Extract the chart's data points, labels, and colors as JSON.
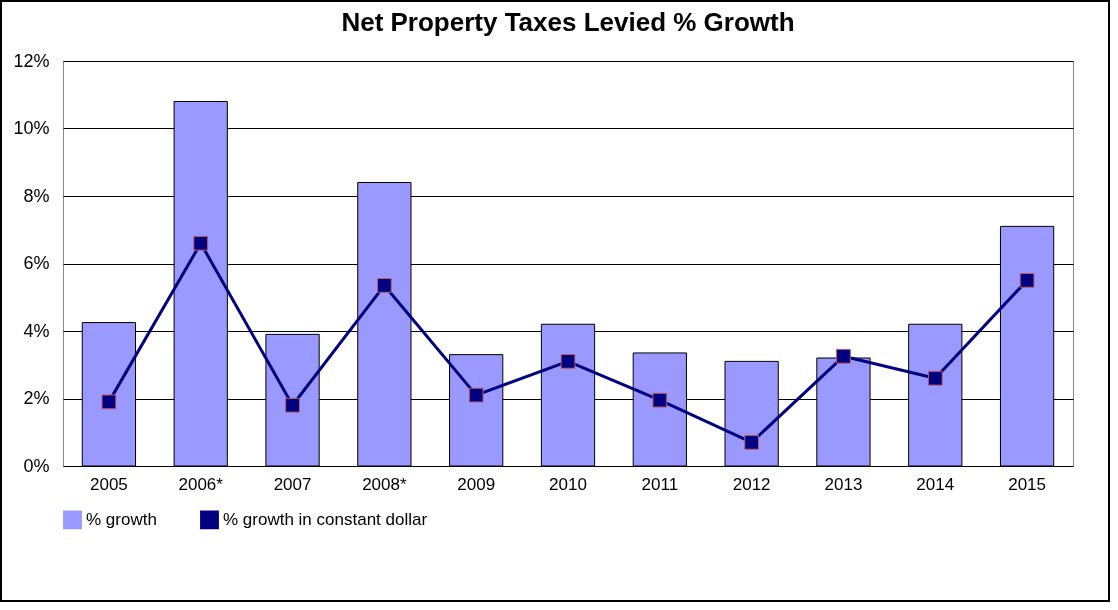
{
  "chart_data": {
    "type": "bar",
    "title": "Net Property Taxes Levied  % Growth",
    "categories": [
      "2005",
      "2006*",
      "2007",
      "2008*",
      "2009",
      "2010",
      "2011",
      "2012",
      "2013",
      "2014",
      "2015"
    ],
    "series": [
      {
        "name": "% growth",
        "color": "#9999ff",
        "values": [
          4.25,
          10.8,
          3.9,
          8.4,
          3.3,
          4.2,
          3.35,
          3.1,
          3.2,
          4.2,
          7.1
        ]
      },
      {
        "name": "% growth in constant dollar",
        "type": "line",
        "color": "#000080",
        "marker": "square",
        "values": [
          1.9,
          6.6,
          1.8,
          5.35,
          2.1,
          3.1,
          1.95,
          0.7,
          3.25,
          2.6,
          5.5
        ]
      }
    ],
    "ylim": [
      0,
      12
    ],
    "yticks": [
      {
        "value": 0,
        "label": "0%"
      },
      {
        "value": 2,
        "label": "2%"
      },
      {
        "value": 4,
        "label": "4%"
      },
      {
        "value": 6,
        "label": "6%"
      },
      {
        "value": 8,
        "label": "8%"
      },
      {
        "value": 10,
        "label": "10%"
      },
      {
        "value": 12,
        "label": "12%"
      }
    ],
    "grid": "y",
    "legend": "bottom"
  }
}
